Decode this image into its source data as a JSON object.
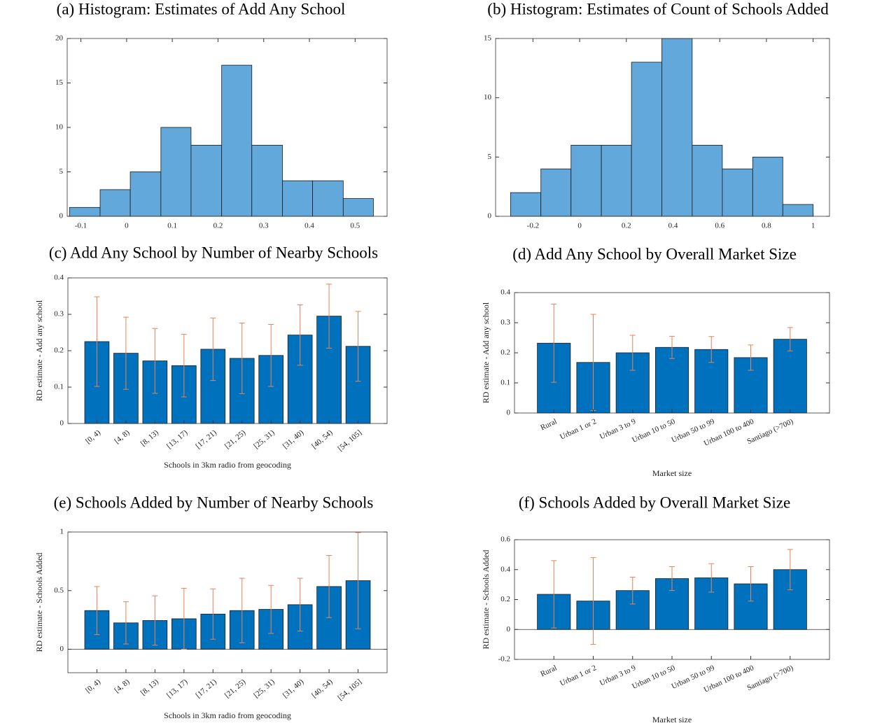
{
  "chart_data": [
    {
      "type": "histogram",
      "title": "(a) Histogram: Estimates of Add Any School",
      "bins": [
        -0.125,
        -0.058,
        0.008,
        0.075,
        0.141,
        0.208,
        0.274,
        0.341,
        0.407,
        0.474,
        0.54
      ],
      "values": [
        1,
        3,
        5,
        10,
        8,
        17,
        8,
        4,
        4,
        2
      ],
      "color": "#63a8da",
      "xlim": [
        -0.13,
        0.57
      ],
      "xticks": [
        -0.1,
        0,
        0.1,
        0.2,
        0.3,
        0.4,
        0.5
      ],
      "ylim": [
        0,
        20
      ],
      "yticks": [
        0,
        5,
        10,
        15,
        20
      ]
    },
    {
      "type": "histogram",
      "title": "(b) Histogram: Estimates of Count of Schools Added",
      "bins": [
        -0.296,
        -0.166,
        -0.037,
        0.093,
        0.222,
        0.352,
        0.482,
        0.611,
        0.741,
        0.87,
        1.0
      ],
      "values": [
        2,
        4,
        6,
        6,
        13,
        15,
        6,
        4,
        5,
        1
      ],
      "color": "#63a8da",
      "xlim": [
        -0.36,
        1.07
      ],
      "xticks": [
        -0.2,
        0,
        0.2,
        0.4,
        0.6,
        0.8,
        1
      ],
      "ylim": [
        0,
        15
      ],
      "yticks": [
        0,
        5,
        10,
        15
      ]
    },
    {
      "type": "bar",
      "title": "(c) Add Any School by Number of Nearby Schools",
      "xlabel": "Schools in 3km radio from geocoding",
      "ylabel": "RD estimate - Add any school",
      "categories": [
        "[0, 4)",
        "[4, 8)",
        "[8, 13)",
        "[13, 17)",
        "[17, 21)",
        "[21, 25)",
        "[25, 31)",
        "[31, 40)",
        "[40, 54)",
        "[54, 105]"
      ],
      "values": [
        0.225,
        0.193,
        0.172,
        0.159,
        0.204,
        0.179,
        0.187,
        0.243,
        0.295,
        0.212
      ],
      "errors": [
        0.123,
        0.099,
        0.089,
        0.086,
        0.086,
        0.097,
        0.085,
        0.083,
        0.088,
        0.096
      ],
      "color": "#0072bd",
      "error_color": "#e8825a",
      "ylim": [
        0,
        0.4
      ],
      "yticks": [
        0,
        0.1,
        0.2,
        0.3,
        0.4
      ]
    },
    {
      "type": "bar",
      "title": "(d) Add Any School by Overall Market Size",
      "xlabel": "Market size",
      "ylabel": "RD estimate - Add any school",
      "categories": [
        "Rural",
        "Urban 1 or 2",
        "Urban 3 to 9",
        "Urban 10 to 50",
        "Urban 50 to 99",
        "Urban 100 to 400",
        "Santiago (>700)"
      ],
      "values": [
        0.232,
        0.168,
        0.2,
        0.218,
        0.211,
        0.184,
        0.245
      ],
      "errors": [
        0.13,
        0.16,
        0.058,
        0.037,
        0.043,
        0.042,
        0.039
      ],
      "color": "#0072bd",
      "error_color": "#e8825a",
      "ylim": [
        0,
        0.4
      ],
      "yticks": [
        0,
        0.1,
        0.2,
        0.3,
        0.4
      ]
    },
    {
      "type": "bar",
      "title": "(e) Schools Added by Number of Nearby Schools",
      "xlabel": "Schools in 3km radio from geocoding",
      "ylabel": "RD estimate - Schools Added",
      "categories": [
        "[0, 4)",
        "[4, 8)",
        "[8, 13)",
        "[13, 17)",
        "[17, 21)",
        "[21, 25)",
        "[25, 31)",
        "[31, 40)",
        "[40, 54)",
        "[54, 105]"
      ],
      "values": [
        0.33,
        0.225,
        0.245,
        0.26,
        0.3,
        0.33,
        0.34,
        0.38,
        0.535,
        0.585
      ],
      "errors": [
        0.205,
        0.18,
        0.21,
        0.26,
        0.215,
        0.275,
        0.205,
        0.225,
        0.265,
        0.41
      ],
      "color": "#0072bd",
      "error_color": "#e8825a",
      "ylim": [
        -0.2,
        1
      ],
      "yticks": [
        0,
        0.5,
        1
      ]
    },
    {
      "type": "bar",
      "title": "(f) Schools Added by Overall Market Size",
      "xlabel": "Market size",
      "ylabel": "RD estimate - Schools Added",
      "categories": [
        "Rural",
        "Urban 1 or 2",
        "Urban 3 to 9",
        "Urban 10 to 50",
        "Urban 50 to 99",
        "Urban 100 to 400",
        "Santiago (>700)"
      ],
      "values": [
        0.235,
        0.19,
        0.26,
        0.34,
        0.345,
        0.305,
        0.4
      ],
      "errors": [
        0.225,
        0.29,
        0.09,
        0.08,
        0.095,
        0.115,
        0.135
      ],
      "color": "#0072bd",
      "error_color": "#e8825a",
      "ylim": [
        -0.2,
        0.6
      ],
      "yticks": [
        -0.2,
        0,
        0.2,
        0.4,
        0.6
      ]
    }
  ]
}
